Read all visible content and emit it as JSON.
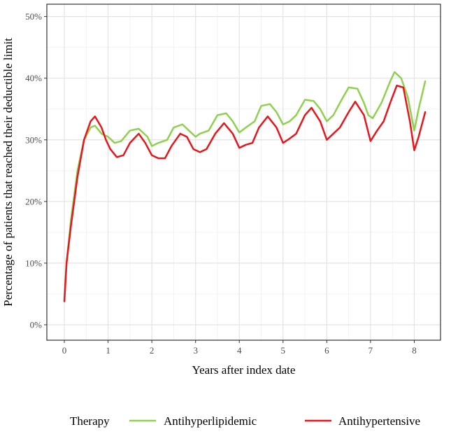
{
  "chart_data": {
    "type": "line",
    "title": "",
    "xlabel": "Years after index date",
    "ylabel": "Percentage of patients that reached their deductible limit",
    "xlim": [
      -0.4,
      8.6
    ],
    "ylim": [
      -2.5,
      52
    ],
    "x_ticks": [
      0,
      1,
      2,
      3,
      4,
      5,
      6,
      7,
      8
    ],
    "x_tick_labels": [
      "0",
      "1",
      "2",
      "3",
      "4",
      "5",
      "6",
      "7",
      "8"
    ],
    "y_ticks": [
      0,
      10,
      20,
      30,
      40,
      50
    ],
    "y_tick_labels": [
      "0%",
      "10%",
      "20%",
      "30%",
      "40%",
      "50%"
    ],
    "grid": true,
    "legend": {
      "title": "Therapy",
      "position": "bottom"
    },
    "series": [
      {
        "name": "Antihyperlipidemic",
        "color": "#8fd14f",
        "points": [
          [
            0,
            4
          ],
          [
            0.05,
            10
          ],
          [
            0.15,
            17
          ],
          [
            0.3,
            25
          ],
          [
            0.45,
            30
          ],
          [
            0.6,
            32
          ],
          [
            0.7,
            32.3
          ],
          [
            0.85,
            31
          ],
          [
            1.0,
            30.5
          ],
          [
            1.15,
            29.5
          ],
          [
            1.3,
            29.8
          ],
          [
            1.5,
            31.5
          ],
          [
            1.7,
            31.8
          ],
          [
            1.9,
            30.5
          ],
          [
            2.0,
            29
          ],
          [
            2.15,
            29.5
          ],
          [
            2.35,
            30
          ],
          [
            2.5,
            32
          ],
          [
            2.7,
            32.5
          ],
          [
            2.85,
            31.5
          ],
          [
            3.0,
            30.5
          ],
          [
            3.1,
            31
          ],
          [
            3.3,
            31.5
          ],
          [
            3.5,
            34
          ],
          [
            3.7,
            34.3
          ],
          [
            3.85,
            33
          ],
          [
            4.0,
            31.2
          ],
          [
            4.15,
            32
          ],
          [
            4.35,
            33
          ],
          [
            4.5,
            35.5
          ],
          [
            4.7,
            35.8
          ],
          [
            4.85,
            34.5
          ],
          [
            5.0,
            32.5
          ],
          [
            5.15,
            33
          ],
          [
            5.3,
            34
          ],
          [
            5.5,
            36.5
          ],
          [
            5.7,
            36.3
          ],
          [
            5.85,
            35
          ],
          [
            6.0,
            33
          ],
          [
            6.15,
            34
          ],
          [
            6.3,
            36
          ],
          [
            6.5,
            38.5
          ],
          [
            6.7,
            38.3
          ],
          [
            6.85,
            36
          ],
          [
            6.95,
            34
          ],
          [
            7.05,
            33.5
          ],
          [
            7.25,
            36
          ],
          [
            7.45,
            39.5
          ],
          [
            7.55,
            41
          ],
          [
            7.7,
            40
          ],
          [
            7.85,
            37
          ],
          [
            8.0,
            31.5
          ],
          [
            8.1,
            35
          ],
          [
            8.25,
            39.5
          ]
        ]
      },
      {
        "name": "Antihypertensive",
        "color": "#e8161c",
        "points": [
          [
            0,
            3.8
          ],
          [
            0.05,
            10
          ],
          [
            0.15,
            16
          ],
          [
            0.3,
            24
          ],
          [
            0.45,
            30
          ],
          [
            0.6,
            33
          ],
          [
            0.7,
            33.8
          ],
          [
            0.85,
            32
          ],
          [
            0.95,
            30
          ],
          [
            1.05,
            28.5
          ],
          [
            1.2,
            27.2
          ],
          [
            1.35,
            27.5
          ],
          [
            1.5,
            29.5
          ],
          [
            1.7,
            31
          ],
          [
            1.85,
            29.5
          ],
          [
            2.0,
            27.5
          ],
          [
            2.15,
            27
          ],
          [
            2.3,
            27
          ],
          [
            2.45,
            29
          ],
          [
            2.65,
            31
          ],
          [
            2.8,
            30.5
          ],
          [
            2.95,
            28.5
          ],
          [
            3.1,
            28
          ],
          [
            3.25,
            28.5
          ],
          [
            3.45,
            31
          ],
          [
            3.65,
            32.7
          ],
          [
            3.85,
            31
          ],
          [
            4.0,
            28.7
          ],
          [
            4.15,
            29.2
          ],
          [
            4.3,
            29.5
          ],
          [
            4.45,
            32
          ],
          [
            4.65,
            33.8
          ],
          [
            4.85,
            32
          ],
          [
            5.0,
            29.5
          ],
          [
            5.15,
            30.2
          ],
          [
            5.3,
            31
          ],
          [
            5.5,
            34
          ],
          [
            5.65,
            35.2
          ],
          [
            5.85,
            33
          ],
          [
            6.0,
            30
          ],
          [
            6.15,
            31
          ],
          [
            6.3,
            32
          ],
          [
            6.5,
            34.5
          ],
          [
            6.65,
            36.2
          ],
          [
            6.85,
            34
          ],
          [
            7.0,
            29.8
          ],
          [
            7.15,
            31.5
          ],
          [
            7.3,
            33
          ],
          [
            7.45,
            36
          ],
          [
            7.6,
            38.8
          ],
          [
            7.75,
            38.5
          ],
          [
            7.9,
            33
          ],
          [
            8.0,
            28.3
          ],
          [
            8.1,
            30.5
          ],
          [
            8.25,
            34.5
          ]
        ]
      }
    ]
  }
}
